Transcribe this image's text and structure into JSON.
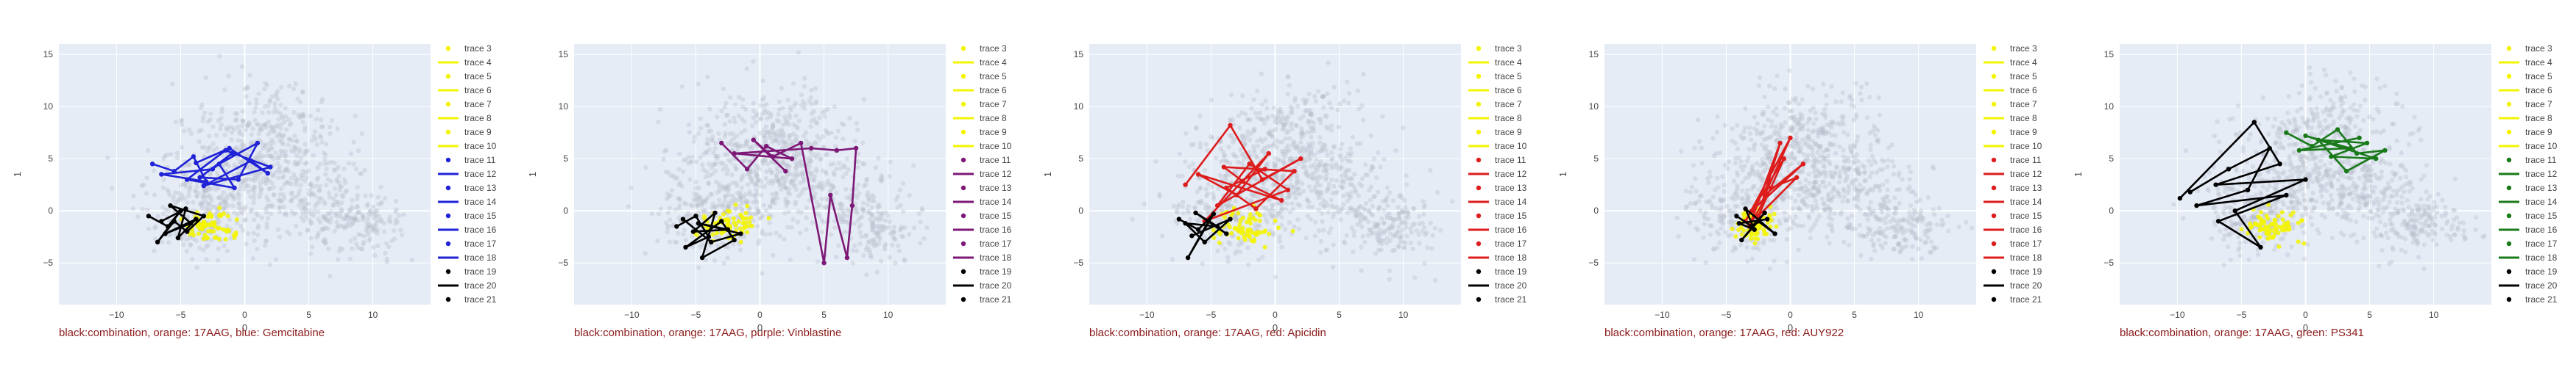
{
  "colors": {
    "background_points": "#b8bcc8",
    "highlight_points": "#f4f400",
    "combination_line": "#000000",
    "plot_bg": "#e5ecf6",
    "grid": "#ffffff",
    "caption": "#8b1a1a"
  },
  "chart_data": [
    {
      "type": "scatter",
      "title": "",
      "caption": "black:combination, orange: 17AAG, blue: Gemcitabine",
      "xlabel": "0",
      "ylabel": "1",
      "xlim": [
        -14.5,
        14.5
      ],
      "ylim": [
        -9.0,
        16.0
      ],
      "xticks": [
        -10,
        -5,
        0,
        5,
        10
      ],
      "yticks": [
        -5,
        0,
        5,
        10,
        15
      ],
      "grid": true,
      "legend_placement": "right",
      "legend": [
        "trace 3",
        "trace 4",
        "trace 5",
        "trace 6",
        "trace 7",
        "trace 8",
        "trace 9",
        "trace 10",
        "trace 11",
        "trace 12",
        "trace 13",
        "trace 14",
        "trace 15",
        "trace 16",
        "trace 17",
        "trace 18",
        "trace 19",
        "trace 20",
        "trace 21"
      ],
      "drug_color": "#1f22d6",
      "drug_path": [
        [
          -7.2,
          4.5
        ],
        [
          -5.5,
          3.8
        ],
        [
          -4.0,
          5.2
        ],
        [
          -3.0,
          2.8
        ],
        [
          -6.5,
          3.5
        ],
        [
          -2.5,
          4.0
        ],
        [
          -1.0,
          5.5
        ],
        [
          -3.5,
          3.2
        ],
        [
          -0.5,
          3.0
        ],
        [
          1.0,
          6.5
        ],
        [
          -2.0,
          4.5
        ],
        [
          -0.8,
          2.2
        ],
        [
          -4.5,
          3.0
        ],
        [
          -1.5,
          5.8
        ],
        [
          2.0,
          4.2
        ],
        [
          -3.2,
          2.4
        ],
        [
          0.5,
          4.8
        ],
        [
          1.8,
          3.6
        ],
        [
          -1.2,
          6.0
        ],
        [
          -3.8,
          4.6
        ]
      ],
      "combo_path": [
        [
          -7.5,
          -0.5
        ],
        [
          -6.0,
          -1.5
        ],
        [
          -5.0,
          0.0
        ],
        [
          -6.8,
          -3.0
        ],
        [
          -5.5,
          -1.0
        ],
        [
          -4.5,
          -2.0
        ],
        [
          -3.2,
          -0.5
        ],
        [
          -5.8,
          0.5
        ],
        [
          -4.2,
          -1.2
        ],
        [
          -6.2,
          -2.2
        ],
        [
          -3.8,
          -0.8
        ],
        [
          -5.2,
          -2.6
        ],
        [
          -4.6,
          0.2
        ],
        [
          -6.5,
          -1.0
        ]
      ],
      "highlight_center": [
        -2.6,
        -1.5
      ],
      "highlight_spread": [
        1.2,
        0.8
      ]
    },
    {
      "type": "scatter",
      "title": "",
      "caption": "black:combination, orange: 17AAG, purple: Vinblastine",
      "xlabel": "0",
      "ylabel": "1",
      "xlim": [
        -14.5,
        14.5
      ],
      "ylim": [
        -9.0,
        16.0
      ],
      "xticks": [
        -10,
        -5,
        0,
        5,
        10
      ],
      "yticks": [
        -5,
        0,
        5,
        10,
        15
      ],
      "grid": true,
      "legend_placement": "right",
      "legend": [
        "trace 3",
        "trace 4",
        "trace 5",
        "trace 6",
        "trace 7",
        "trace 8",
        "trace 9",
        "trace 10",
        "trace 11",
        "trace 12",
        "trace 13",
        "trace 14",
        "trace 15",
        "trace 16",
        "trace 17",
        "trace 18",
        "trace 19",
        "trace 20",
        "trace 21"
      ],
      "drug_color": "#7d1877",
      "drug_path": [
        [
          -3.0,
          6.5
        ],
        [
          -1.0,
          4.0
        ],
        [
          0.5,
          6.2
        ],
        [
          2.5,
          5.0
        ],
        [
          -2.0,
          5.5
        ],
        [
          4.0,
          6.0
        ],
        [
          6.0,
          5.8
        ],
        [
          7.5,
          6.0
        ],
        [
          7.2,
          0.5
        ],
        [
          6.8,
          -4.5
        ],
        [
          5.5,
          1.5
        ],
        [
          5.0,
          -5.0
        ],
        [
          3.2,
          6.5
        ],
        [
          1.0,
          5.2
        ],
        [
          -0.5,
          6.8
        ],
        [
          2.0,
          3.8
        ]
      ],
      "combo_path": [
        [
          -6.5,
          -1.5
        ],
        [
          -5.0,
          -0.5
        ],
        [
          -4.0,
          -2.5
        ],
        [
          -5.8,
          -3.5
        ],
        [
          -3.0,
          -1.0
        ],
        [
          -2.0,
          -2.8
        ],
        [
          -4.5,
          -4.5
        ],
        [
          -3.5,
          -0.2
        ],
        [
          -5.2,
          -2.0
        ],
        [
          -2.5,
          -1.8
        ],
        [
          -4.8,
          -1.2
        ],
        [
          -1.5,
          -2.2
        ],
        [
          -3.8,
          -3.0
        ],
        [
          -6.0,
          -0.8
        ]
      ],
      "highlight_center": [
        -2.4,
        -1.4
      ],
      "highlight_spread": [
        1.3,
        0.8
      ]
    },
    {
      "type": "scatter",
      "title": "",
      "caption": "black:combination, orange: 17AAG, red: Apicidin",
      "xlabel": "0",
      "ylabel": "1",
      "xlim": [
        -14.5,
        14.5
      ],
      "ylim": [
        -9.0,
        16.0
      ],
      "xticks": [
        -10,
        -5,
        0,
        5,
        10
      ],
      "yticks": [
        -5,
        0,
        5,
        10,
        15
      ],
      "grid": true,
      "legend_placement": "right",
      "legend": [
        "trace 3",
        "trace 4",
        "trace 5",
        "trace 6",
        "trace 7",
        "trace 8",
        "trace 9",
        "trace 10",
        "trace 11",
        "trace 12",
        "trace 13",
        "trace 14",
        "trace 15",
        "trace 16",
        "trace 17",
        "trace 18",
        "trace 19",
        "trace 20",
        "trace 21"
      ],
      "drug_color": "#dd1c1c",
      "drug_path": [
        [
          -7.0,
          2.5
        ],
        [
          -3.5,
          8.2
        ],
        [
          -1.0,
          3.0
        ],
        [
          2.0,
          5.0
        ],
        [
          -4.5,
          0.5
        ],
        [
          -2.0,
          4.5
        ],
        [
          1.0,
          2.0
        ],
        [
          -5.5,
          -1.0
        ],
        [
          -0.5,
          5.5
        ],
        [
          -3.0,
          1.5
        ],
        [
          -6.0,
          3.5
        ],
        [
          0.5,
          1.0
        ],
        [
          -2.5,
          2.8
        ],
        [
          -4.0,
          4.2
        ],
        [
          1.5,
          3.8
        ],
        [
          -1.5,
          0.2
        ],
        [
          -3.8,
          2.2
        ],
        [
          -0.8,
          4.0
        ]
      ],
      "combo_path": [
        [
          -7.5,
          -0.8
        ],
        [
          -6.0,
          -1.8
        ],
        [
          -4.8,
          -0.3
        ],
        [
          -6.8,
          -4.5
        ],
        [
          -5.2,
          -1.0
        ],
        [
          -3.8,
          -2.2
        ],
        [
          -6.2,
          -0.2
        ],
        [
          -4.5,
          -1.5
        ],
        [
          -7.0,
          -1.2
        ],
        [
          -5.5,
          -3.0
        ],
        [
          -3.5,
          -0.8
        ],
        [
          -6.5,
          -2.4
        ]
      ],
      "highlight_center": [
        -2.2,
        -1.6
      ],
      "highlight_spread": [
        1.3,
        0.8
      ]
    },
    {
      "type": "scatter",
      "title": "",
      "caption": "black:combination, orange: 17AAG, red: AUY922",
      "xlabel": "0",
      "ylabel": "1",
      "xlim": [
        -14.5,
        14.5
      ],
      "ylim": [
        -9.0,
        16.0
      ],
      "xticks": [
        -10,
        -5,
        0,
        5,
        10
      ],
      "yticks": [
        -5,
        0,
        5,
        10,
        15
      ],
      "grid": true,
      "legend_placement": "right",
      "legend": [
        "trace 3",
        "trace 4",
        "trace 5",
        "trace 6",
        "trace 7",
        "trace 8",
        "trace 9",
        "trace 10",
        "trace 11",
        "trace 12",
        "trace 13",
        "trace 14",
        "trace 15",
        "trace 16",
        "trace 17",
        "trace 18",
        "trace 19",
        "trace 20",
        "trace 21"
      ],
      "drug_color": "#dd1c1c",
      "drug_path": [
        [
          -3.5,
          -1.0
        ],
        [
          0.0,
          7.0
        ],
        [
          -2.0,
          1.5
        ],
        [
          1.0,
          4.5
        ],
        [
          -3.0,
          0.0
        ],
        [
          -0.5,
          5.0
        ],
        [
          -2.5,
          -0.5
        ],
        [
          0.5,
          3.2
        ],
        [
          -1.5,
          2.2
        ],
        [
          -3.2,
          -1.5
        ],
        [
          -0.8,
          6.5
        ],
        [
          -2.2,
          0.8
        ]
      ],
      "combo_path": [
        [
          -4.2,
          -0.5
        ],
        [
          -3.0,
          -1.5
        ],
        [
          -2.0,
          -0.2
        ],
        [
          -3.8,
          -2.8
        ],
        [
          -2.5,
          -1.0
        ],
        [
          -1.2,
          -2.2
        ],
        [
          -3.5,
          0.2
        ],
        [
          -2.8,
          -1.8
        ],
        [
          -4.0,
          -1.2
        ],
        [
          -1.8,
          -0.8
        ]
      ],
      "highlight_center": [
        -2.8,
        -1.2
      ],
      "highlight_spread": [
        0.9,
        0.7
      ]
    },
    {
      "type": "scatter",
      "title": "",
      "caption": "black:combination, orange: 17AAG, green: PS341",
      "xlabel": "0",
      "ylabel": "1",
      "xlim": [
        -14.5,
        14.5
      ],
      "ylim": [
        -9.0,
        16.0
      ],
      "xticks": [
        -10,
        -5,
        0,
        5,
        10
      ],
      "yticks": [
        -5,
        0,
        5,
        10,
        15
      ],
      "grid": true,
      "legend_placement": "right",
      "legend": [
        "trace 3",
        "trace 4",
        "trace 5",
        "trace 6",
        "trace 7",
        "trace 8",
        "trace 9",
        "trace 10",
        "trace 11",
        "trace 12",
        "trace 13",
        "trace 14",
        "trace 15",
        "trace 16",
        "trace 17",
        "trace 18",
        "trace 19",
        "trace 20",
        "trace 21"
      ],
      "drug_color": "#1a7a1a",
      "drug_path": [
        [
          -1.5,
          7.5
        ],
        [
          0.5,
          6.2
        ],
        [
          2.5,
          7.8
        ],
        [
          4.0,
          5.5
        ],
        [
          6.2,
          5.8
        ],
        [
          3.2,
          3.8
        ],
        [
          1.0,
          6.8
        ],
        [
          4.8,
          6.5
        ],
        [
          2.0,
          5.2
        ],
        [
          5.5,
          5.0
        ],
        [
          0.0,
          7.2
        ],
        [
          3.5,
          6.0
        ],
        [
          -0.5,
          5.8
        ],
        [
          4.2,
          7.0
        ]
      ],
      "combo_path": [
        [
          -9.8,
          1.2
        ],
        [
          -4.0,
          8.5
        ],
        [
          -2.0,
          4.5
        ],
        [
          -7.0,
          2.5
        ],
        [
          0.0,
          3.0
        ],
        [
          -5.5,
          0.0
        ],
        [
          -3.5,
          -3.5
        ],
        [
          -6.8,
          -1.0
        ],
        [
          -1.5,
          1.5
        ],
        [
          -8.5,
          0.5
        ],
        [
          -4.5,
          2.0
        ],
        [
          -2.8,
          6.0
        ],
        [
          -6.0,
          4.0
        ],
        [
          -9.0,
          1.8
        ]
      ],
      "highlight_center": [
        -2.3,
        -1.5
      ],
      "highlight_spread": [
        1.2,
        0.8
      ]
    }
  ]
}
